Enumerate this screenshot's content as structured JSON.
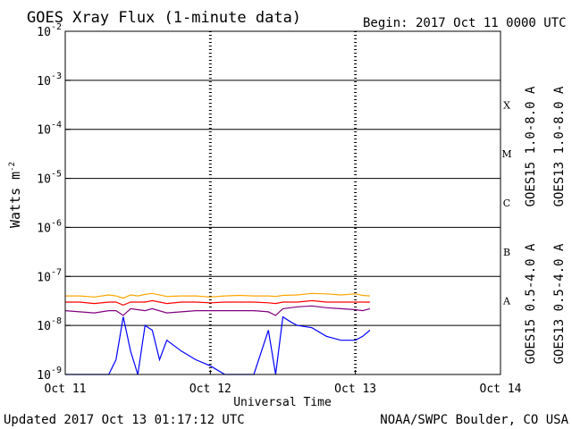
{
  "header": {
    "title": "GOES Xray Flux (1-minute data)",
    "begin": "Begin:  2017 Oct 11 0000 UTC"
  },
  "footer": {
    "updated": "Updated 2017 Oct 13 01:17:12 UTC",
    "credit": "NOAA/SWPC Boulder, CO USA"
  },
  "chart_data": {
    "type": "line",
    "title": "GOES Xray Flux (1-minute data)",
    "xlabel": "Universal Time",
    "ylabel": "Watts m-2",
    "ylabel_main": "Watts m",
    "ylabel_sup": "-2",
    "xlim_days": [
      0,
      3
    ],
    "x_ticks": [
      {
        "day": 0,
        "label": "Oct 11"
      },
      {
        "day": 1,
        "label": "Oct 12"
      },
      {
        "day": 2,
        "label": "Oct 13"
      },
      {
        "day": 3,
        "label": "Oct 14"
      }
    ],
    "y_scale": "log",
    "ylim_exp": [
      -9,
      -2
    ],
    "y_ticks": [
      {
        "exp": -2,
        "base": "10",
        "sup": "-2"
      },
      {
        "exp": -3,
        "base": "10",
        "sup": "-3"
      },
      {
        "exp": -4,
        "base": "10",
        "sup": "-4"
      },
      {
        "exp": -5,
        "base": "10",
        "sup": "-5"
      },
      {
        "exp": -6,
        "base": "10",
        "sup": "-6"
      },
      {
        "exp": -7,
        "base": "10",
        "sup": "-7"
      },
      {
        "exp": -8,
        "base": "10",
        "sup": "-8"
      },
      {
        "exp": -9,
        "base": "10",
        "sup": "-9"
      }
    ],
    "flare_classes": [
      {
        "label": "X",
        "exp": -3.5
      },
      {
        "label": "M",
        "exp": -4.5
      },
      {
        "label": "C",
        "exp": -5.5
      },
      {
        "label": "B",
        "exp": -6.5
      },
      {
        "label": "A",
        "exp": -7.5
      }
    ],
    "grid": true,
    "legend_position": "right",
    "series": [
      {
        "name": "GOES15 1.0-8.0 A",
        "color": "#ff0000",
        "x_days": [
          0.0,
          0.1,
          0.2,
          0.3,
          0.35,
          0.4,
          0.45,
          0.5,
          0.55,
          0.6,
          0.7,
          0.8,
          0.9,
          1.0,
          1.1,
          1.2,
          1.3,
          1.4,
          1.45,
          1.5,
          1.6,
          1.7,
          1.8,
          1.9,
          2.0,
          2.05,
          2.1
        ],
        "y": [
          3e-08,
          3e-08,
          2.8e-08,
          3e-08,
          3e-08,
          2.6e-08,
          3e-08,
          3e-08,
          3e-08,
          3.2e-08,
          2.8e-08,
          3e-08,
          3e-08,
          2.9e-08,
          3e-08,
          3e-08,
          3e-08,
          2.9e-08,
          2.8e-08,
          3e-08,
          3e-08,
          3.2e-08,
          3e-08,
          3e-08,
          3e-08,
          3e-08,
          3e-08
        ]
      },
      {
        "name": "GOES13 1.0-8.0 A",
        "color": "#ffa500",
        "x_days": [
          0.0,
          0.1,
          0.2,
          0.3,
          0.35,
          0.4,
          0.45,
          0.5,
          0.55,
          0.6,
          0.7,
          0.8,
          0.9,
          1.0,
          1.1,
          1.2,
          1.3,
          1.4,
          1.45,
          1.5,
          1.6,
          1.7,
          1.8,
          1.9,
          2.0,
          2.05,
          2.1
        ],
        "y": [
          4e-08,
          4e-08,
          3.8e-08,
          4.2e-08,
          4e-08,
          3.6e-08,
          4.2e-08,
          4e-08,
          4.3e-08,
          4.5e-08,
          3.9e-08,
          4e-08,
          4e-08,
          3.8e-08,
          4e-08,
          4.1e-08,
          4e-08,
          4e-08,
          3.9e-08,
          4.1e-08,
          4.2e-08,
          4.5e-08,
          4.4e-08,
          4.2e-08,
          4.4e-08,
          4.1e-08,
          4e-08
        ]
      },
      {
        "name": "GOES15 0.5-4.0 A",
        "color": "#0000ff",
        "x_days": [
          0.0,
          0.1,
          0.2,
          0.3,
          0.35,
          0.4,
          0.45,
          0.5,
          0.55,
          0.6,
          0.65,
          0.7,
          0.8,
          0.9,
          1.0,
          1.1,
          1.2,
          1.3,
          1.4,
          1.45,
          1.5,
          1.55,
          1.6,
          1.7,
          1.8,
          1.9,
          2.0,
          2.05,
          2.1
        ],
        "y": [
          1e-09,
          1e-09,
          1e-09,
          1e-09,
          2e-09,
          1.5e-08,
          3e-09,
          1e-09,
          1e-08,
          8e-09,
          2e-09,
          5e-09,
          3e-09,
          2e-09,
          1.5e-09,
          1e-09,
          1e-09,
          1e-09,
          8e-09,
          1e-09,
          1.5e-08,
          1.2e-08,
          1e-08,
          9e-09,
          6e-09,
          5e-09,
          5e-09,
          6e-09,
          8e-09
        ]
      },
      {
        "name": "GOES13 0.5-4.0 A",
        "color": "#800080",
        "x_days": [
          0.0,
          0.1,
          0.2,
          0.3,
          0.35,
          0.4,
          0.45,
          0.5,
          0.55,
          0.6,
          0.7,
          0.8,
          0.9,
          1.0,
          1.1,
          1.2,
          1.3,
          1.4,
          1.45,
          1.5,
          1.6,
          1.7,
          1.8,
          1.9,
          2.0,
          2.05,
          2.1
        ],
        "y": [
          2e-08,
          1.9e-08,
          1.8e-08,
          2e-08,
          2e-08,
          1.6e-08,
          2.2e-08,
          2.1e-08,
          2e-08,
          2.2e-08,
          1.8e-08,
          1.9e-08,
          2e-08,
          2e-08,
          2e-08,
          2e-08,
          2e-08,
          1.9e-08,
          1.6e-08,
          2.2e-08,
          2.4e-08,
          2.5e-08,
          2.3e-08,
          2.2e-08,
          2.1e-08,
          2e-08,
          2.2e-08
        ]
      }
    ]
  }
}
